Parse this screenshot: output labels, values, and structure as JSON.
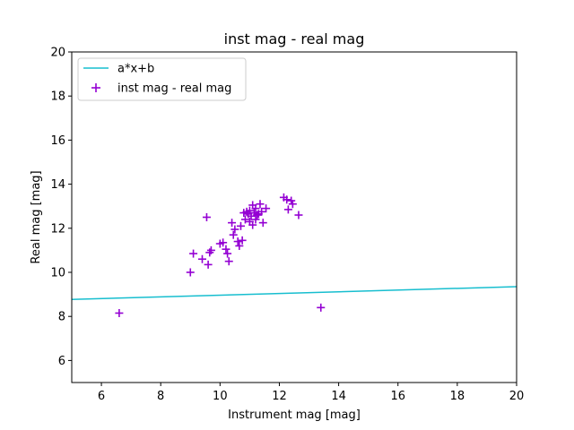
{
  "chart_data": {
    "type": "scatter",
    "title": "inst mag - real mag",
    "xlabel": "Instrument mag [mag]",
    "ylabel": "Real mag [mag]",
    "xlim": [
      5,
      20
    ],
    "ylim": [
      5,
      20
    ],
    "xticks": [
      6,
      8,
      10,
      12,
      14,
      16,
      18,
      20
    ],
    "yticks": [
      6,
      8,
      10,
      12,
      14,
      16,
      18,
      20
    ],
    "grid": false,
    "legend_position": "top-left",
    "colors": {
      "line": "#17becf",
      "points": "#9400d3"
    },
    "series": [
      {
        "name": "a*x+b",
        "type": "line",
        "x": [
          5,
          20
        ],
        "y": [
          8.77,
          9.35
        ]
      },
      {
        "name": "inst mag - real mag",
        "type": "scatter",
        "marker": "plus",
        "x": [
          6.6,
          9.0,
          9.1,
          9.4,
          9.55,
          9.6,
          9.65,
          9.7,
          10.0,
          10.1,
          10.2,
          10.25,
          10.3,
          10.4,
          10.45,
          10.5,
          10.6,
          10.65,
          10.7,
          10.75,
          10.8,
          10.85,
          10.9,
          10.95,
          11.0,
          11.0,
          11.05,
          11.1,
          11.1,
          11.15,
          11.2,
          11.2,
          11.25,
          11.3,
          11.35,
          11.4,
          11.45,
          11.55,
          12.15,
          12.25,
          12.3,
          12.4,
          12.45,
          12.65,
          13.4
        ],
        "y": [
          8.15,
          10.0,
          10.85,
          10.6,
          12.5,
          10.35,
          10.9,
          11.0,
          11.3,
          11.35,
          11.05,
          10.85,
          10.5,
          12.25,
          11.7,
          11.95,
          11.4,
          11.2,
          12.1,
          11.45,
          12.7,
          12.4,
          12.75,
          12.65,
          12.3,
          12.8,
          12.55,
          13.05,
          12.15,
          12.7,
          12.4,
          12.9,
          12.6,
          12.65,
          13.1,
          12.75,
          12.25,
          12.9,
          13.4,
          13.3,
          12.85,
          13.25,
          13.1,
          12.6,
          8.4
        ]
      }
    ]
  }
}
